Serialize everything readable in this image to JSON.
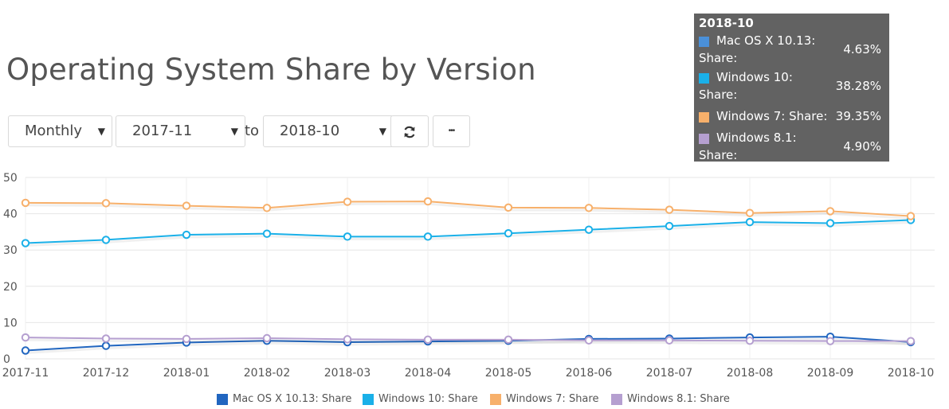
{
  "page": {
    "title": "Operating System Share by Version"
  },
  "controls": {
    "interval": "Monthly",
    "from": "2017-11",
    "to_label": "to",
    "to": "2018-10",
    "refresh_icon": "refresh-icon",
    "more_label": "•••"
  },
  "tooltip": {
    "title": "2018-10",
    "rows": [
      {
        "label": "Mac OS X 10.13: Share:",
        "value": "4.63%",
        "color": "#4a90d9"
      },
      {
        "label": "Windows 10: Share:",
        "value": "38.28%",
        "color": "#1ab0e8"
      },
      {
        "label": "Windows 7: Share:",
        "value": "39.35%",
        "color": "#f7b06b"
      },
      {
        "label": "Windows 8.1: Share:",
        "value": "4.90%",
        "color": "#b59fd0"
      }
    ]
  },
  "chart_data": {
    "type": "line",
    "x": [
      "2017-11",
      "2017-12",
      "2018-01",
      "2018-02",
      "2018-03",
      "2018-04",
      "2018-05",
      "2018-06",
      "2018-07",
      "2018-08",
      "2018-09",
      "2018-10"
    ],
    "ylim": [
      0,
      50
    ],
    "yticks": [
      "0",
      "10",
      "20",
      "30",
      "40",
      "50"
    ],
    "grid": true,
    "legend_position": "bottom",
    "series": [
      {
        "name": "Mac OS X 10.13: Share",
        "color": "#2166c0",
        "values": [
          2.3,
          3.6,
          4.5,
          5.0,
          4.6,
          4.8,
          5.0,
          5.5,
          5.6,
          5.9,
          6.1,
          4.63
        ]
      },
      {
        "name": "Windows 10: Share",
        "color": "#1ab0e8",
        "values": [
          31.9,
          32.8,
          34.2,
          34.5,
          33.7,
          33.7,
          34.6,
          35.6,
          36.6,
          37.7,
          37.4,
          38.28
        ]
      },
      {
        "name": "Windows 7: Share",
        "color": "#f7b06b",
        "values": [
          43.0,
          42.9,
          42.2,
          41.6,
          43.3,
          43.4,
          41.7,
          41.6,
          41.1,
          40.2,
          40.7,
          39.35
        ]
      },
      {
        "name": "Windows 8.1: Share",
        "color": "#b59fd0",
        "values": [
          5.9,
          5.6,
          5.5,
          5.7,
          5.4,
          5.3,
          5.3,
          5.1,
          5.1,
          5.0,
          4.9,
          4.9
        ]
      }
    ]
  }
}
